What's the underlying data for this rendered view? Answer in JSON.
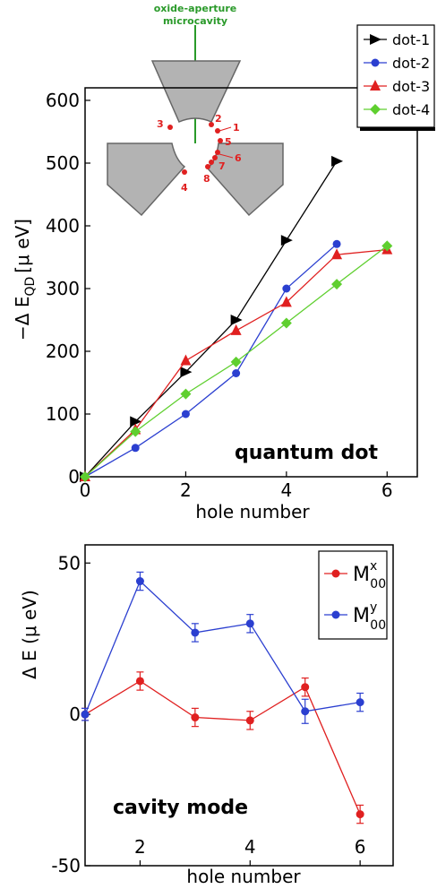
{
  "chart_data": [
    {
      "type": "line",
      "ylabel": "−Δ E",
      "ylabel_sub": "QD",
      "ylabel_unit": "[μ eV]",
      "xlabel": "hole number",
      "annotation": "quantum dot",
      "xlim": [
        0,
        6.6
      ],
      "ylim": [
        0,
        620
      ],
      "xticks": [
        "0",
        "2",
        "4",
        "6"
      ],
      "yticks": [
        "0",
        "100",
        "200",
        "300",
        "400",
        "500",
        "600"
      ],
      "legend_position": "top-right",
      "series": [
        {
          "name": "dot-1",
          "color": "#000000",
          "marker": "triangle-right",
          "x": [
            0,
            1,
            2,
            3,
            4,
            5
          ],
          "y": [
            0,
            88,
            167,
            250,
            377,
            503
          ]
        },
        {
          "name": "dot-2",
          "color": "#2b3fd0",
          "marker": "circle",
          "x": [
            0,
            1,
            2,
            3,
            4,
            5
          ],
          "y": [
            0,
            46,
            100,
            165,
            300,
            371
          ]
        },
        {
          "name": "dot-3",
          "color": "#e02020",
          "marker": "triangle-up",
          "x": [
            0,
            1,
            2,
            3,
            4,
            5,
            6
          ],
          "y": [
            0,
            75,
            185,
            233,
            278,
            354,
            362
          ]
        },
        {
          "name": "dot-4",
          "color": "#5fcf2f",
          "marker": "diamond",
          "x": [
            0,
            1,
            2,
            3,
            4,
            5,
            6
          ],
          "y": [
            0,
            72,
            132,
            183,
            245,
            307,
            368
          ]
        }
      ],
      "inset": {
        "title_line1": "oxide-aperture",
        "title_line2": "microcavity",
        "hole_labels": [
          "1",
          "2",
          "3",
          "4",
          "5",
          "6",
          "7",
          "8"
        ]
      }
    },
    {
      "type": "line",
      "ylabel": "Δ E (μ eV)",
      "xlabel": "hole number",
      "annotation": "cavity mode",
      "xlim": [
        1,
        6.6
      ],
      "ylim": [
        -50,
        56
      ],
      "xticks": [
        "2",
        "4",
        "6"
      ],
      "yticks": [
        "50",
        "0",
        "-50"
      ],
      "legend_position": "top-right",
      "series": [
        {
          "name": "M",
          "sup": "x",
          "sub": "00",
          "color": "#e02020",
          "x": [
            1,
            2,
            3,
            4,
            5,
            6
          ],
          "y": [
            0,
            11,
            -1,
            -2,
            9,
            -33
          ],
          "err": [
            2,
            3,
            3,
            3,
            3,
            3
          ]
        },
        {
          "name": "M",
          "sup": "y",
          "sub": "00",
          "color": "#2b3fd0",
          "x": [
            1,
            2,
            3,
            4,
            5,
            6
          ],
          "y": [
            0,
            44,
            27,
            30,
            1,
            4
          ],
          "err": [
            2,
            3,
            3,
            3,
            4,
            3
          ]
        }
      ]
    }
  ]
}
